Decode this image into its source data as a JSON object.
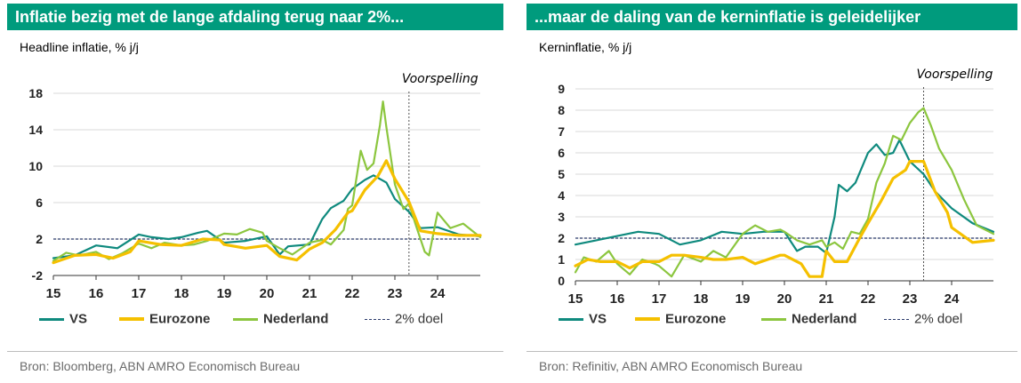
{
  "colors": {
    "header_bg": "#009b7d",
    "vs": "#0f8a7e",
    "eurozone": "#f5c000",
    "nederland": "#8cc63f",
    "target": "#2b3a6b",
    "grid": "#d9d9d9",
    "axis": "#000000"
  },
  "panels": [
    {
      "title": "Inflatie bezig met de lange afdaling terug naar 2%...",
      "subtitle": "Headline inflatie, % j/j",
      "source": "Bron: Bloomberg, ABN AMRO Economisch Bureau",
      "legend": {
        "vs": "VS",
        "eurozone": "Eurozone",
        "nederland": "Nederland",
        "target": "2% doel"
      }
    },
    {
      "title": "...maar de daling van de kerninflatie is geleidelijker",
      "subtitle": "Kerninflatie, % j/j",
      "source": "Bron: Refinitiv, ABN AMRO Economisch Bureau",
      "legend": {
        "vs": "VS",
        "eurozone": "Eurozone",
        "nederland": "Nederland",
        "target": "2% doel"
      }
    }
  ],
  "chart_data": [
    {
      "type": "line",
      "title": "Headline inflatie, % j/j",
      "xlabel": "",
      "ylabel": "",
      "xlim": [
        2015,
        2025
      ],
      "ylim": [
        -2,
        18
      ],
      "yticks": [
        -2,
        2,
        6,
        10,
        14,
        18
      ],
      "xticks": [
        2015,
        2016,
        2017,
        2018,
        2019,
        2020,
        2021,
        2022,
        2023,
        2024
      ],
      "xticklabels": [
        "15",
        "16",
        "17",
        "18",
        "19",
        "20",
        "21",
        "22",
        "23",
        "24"
      ],
      "forecast_x": 2023.33,
      "forecast_label": "Voorspelling",
      "target_y": 2,
      "series": [
        {
          "name": "VS",
          "key": "vs",
          "x": [
            2015,
            2015.5,
            2016,
            2016.5,
            2017,
            2017.3,
            2017.7,
            2018,
            2018.4,
            2018.6,
            2019,
            2019.5,
            2020,
            2020.3,
            2020.5,
            2021,
            2021.3,
            2021.5,
            2021.8,
            2022,
            2022.3,
            2022.5,
            2022.8,
            2023,
            2023.33,
            2023.6,
            2024,
            2024.5,
            2025
          ],
          "values": [
            -0.1,
            0.2,
            1.3,
            1.0,
            2.5,
            2.2,
            2.0,
            2.2,
            2.7,
            2.9,
            1.6,
            1.8,
            2.3,
            0.3,
            1.2,
            1.4,
            4.2,
            5.4,
            6.2,
            7.5,
            8.5,
            9.0,
            8.2,
            6.4,
            5.0,
            3.2,
            3.3,
            2.5,
            2.3
          ]
        },
        {
          "name": "Eurozone",
          "key": "eurozone",
          "x": [
            2015,
            2015.5,
            2016,
            2016.4,
            2016.8,
            2017,
            2017.5,
            2018,
            2018.5,
            2018.9,
            2019,
            2019.5,
            2020,
            2020.3,
            2020.7,
            2021,
            2021.3,
            2021.6,
            2021.9,
            2022,
            2022.3,
            2022.6,
            2022.8,
            2023,
            2023.33,
            2023.6,
            2024,
            2024.5,
            2025
          ],
          "values": [
            -0.6,
            0.2,
            0.3,
            -0.1,
            0.6,
            1.8,
            1.4,
            1.3,
            2.0,
            1.9,
            1.4,
            1.0,
            1.3,
            0.1,
            -0.3,
            0.9,
            1.6,
            3.0,
            4.9,
            5.1,
            7.4,
            8.9,
            10.6,
            8.6,
            6.1,
            2.9,
            2.6,
            2.4,
            2.4
          ]
        },
        {
          "name": "Nederland",
          "key": "nederland",
          "x": [
            2015,
            2015.3,
            2015.6,
            2016,
            2016.3,
            2016.6,
            2017,
            2017.3,
            2017.6,
            2018,
            2018.3,
            2018.6,
            2019,
            2019.3,
            2019.6,
            2019.9,
            2020,
            2020.3,
            2020.6,
            2021,
            2021.3,
            2021.5,
            2021.8,
            2021.9,
            2022,
            2022.2,
            2022.35,
            2022.5,
            2022.65,
            2022.72,
            2022.8,
            2023,
            2023.2,
            2023.33,
            2023.5,
            2023.7,
            2023.8,
            2024,
            2024.3,
            2024.6,
            2025
          ],
          "values": [
            -0.4,
            0.5,
            0.2,
            0.6,
            -0.2,
            0.4,
            1.5,
            1.0,
            1.6,
            1.3,
            1.4,
            1.8,
            2.6,
            2.5,
            3.1,
            2.7,
            1.8,
            1.0,
            0.3,
            1.6,
            1.9,
            1.4,
            3.0,
            5.3,
            5.7,
            11.7,
            9.6,
            10.3,
            14.5,
            17.1,
            14.3,
            8.0,
            5.3,
            5.9,
            3.4,
            0.6,
            0.2,
            4.9,
            3.2,
            3.7,
            2.2
          ]
        }
      ]
    },
    {
      "type": "line",
      "title": "Kerninflatie, % j/j",
      "xlabel": "",
      "ylabel": "",
      "xlim": [
        2015,
        2025
      ],
      "ylim": [
        0,
        9
      ],
      "yticks": [
        0,
        1,
        2,
        3,
        4,
        5,
        6,
        7,
        8,
        9
      ],
      "xticks": [
        2015,
        2016,
        2017,
        2018,
        2019,
        2020,
        2021,
        2022,
        2023,
        2024
      ],
      "xticklabels": [
        "15",
        "16",
        "17",
        "18",
        "19",
        "20",
        "21",
        "22",
        "23",
        "24"
      ],
      "forecast_x": 2023.33,
      "forecast_label": "Voorspelling",
      "target_y": 2,
      "series": [
        {
          "name": "VS",
          "key": "vs",
          "x": [
            2015,
            2015.5,
            2016,
            2016.5,
            2017,
            2017.5,
            2018,
            2018.5,
            2019,
            2019.5,
            2020,
            2020.3,
            2020.5,
            2020.8,
            2021,
            2021.2,
            2021.3,
            2021.5,
            2021.7,
            2022,
            2022.2,
            2022.4,
            2022.6,
            2022.75,
            2023,
            2023.33,
            2023.6,
            2024,
            2024.5,
            2025
          ],
          "values": [
            1.7,
            1.9,
            2.1,
            2.3,
            2.2,
            1.7,
            1.9,
            2.3,
            2.2,
            2.3,
            2.3,
            1.4,
            1.6,
            1.6,
            1.3,
            3.0,
            4.5,
            4.2,
            4.6,
            6.0,
            6.4,
            5.9,
            6.0,
            6.6,
            5.6,
            5.0,
            4.2,
            3.4,
            2.7,
            2.3
          ]
        },
        {
          "name": "Eurozone",
          "key": "eurozone",
          "x": [
            2015,
            2015.3,
            2015.6,
            2016,
            2016.3,
            2016.6,
            2017,
            2017.3,
            2017.6,
            2018,
            2018.3,
            2018.6,
            2019,
            2019.3,
            2019.6,
            2019.9,
            2020,
            2020.4,
            2020.6,
            2020.9,
            2021,
            2021.2,
            2021.5,
            2021.8,
            2022,
            2022.3,
            2022.6,
            2022.9,
            2023,
            2023.33,
            2023.6,
            2023.9,
            2024,
            2024.5,
            2025
          ],
          "values": [
            0.7,
            1.0,
            0.9,
            0.9,
            0.6,
            0.9,
            0.9,
            1.2,
            1.2,
            1.1,
            1.0,
            1.0,
            1.1,
            0.8,
            1.0,
            1.2,
            1.2,
            0.8,
            0.2,
            0.2,
            1.4,
            0.9,
            0.9,
            2.0,
            2.7,
            3.7,
            4.8,
            5.2,
            5.6,
            5.6,
            4.2,
            3.2,
            2.5,
            1.8,
            1.9
          ]
        },
        {
          "name": "Nederland",
          "key": "nederland",
          "x": [
            2015,
            2015.2,
            2015.5,
            2015.8,
            2016,
            2016.3,
            2016.6,
            2016.9,
            2017,
            2017.3,
            2017.6,
            2018,
            2018.3,
            2018.6,
            2019,
            2019.3,
            2019.6,
            2019.9,
            2020,
            2020.3,
            2020.6,
            2020.9,
            2021,
            2021.2,
            2021.4,
            2021.6,
            2021.8,
            2022,
            2022.2,
            2022.4,
            2022.6,
            2022.8,
            2023,
            2023.2,
            2023.33,
            2023.5,
            2023.7,
            2024,
            2024.3,
            2024.6,
            2025
          ],
          "values": [
            0.4,
            1.1,
            0.9,
            1.4,
            0.8,
            0.3,
            1.0,
            0.8,
            0.7,
            0.2,
            1.2,
            0.9,
            1.4,
            1.1,
            2.2,
            2.6,
            2.3,
            2.4,
            2.3,
            1.9,
            1.7,
            1.9,
            1.6,
            1.8,
            1.5,
            2.3,
            2.2,
            2.9,
            4.6,
            5.5,
            6.8,
            6.6,
            7.4,
            7.9,
            8.1,
            7.3,
            6.2,
            5.2,
            3.8,
            2.6,
            2.2
          ]
        }
      ]
    }
  ]
}
